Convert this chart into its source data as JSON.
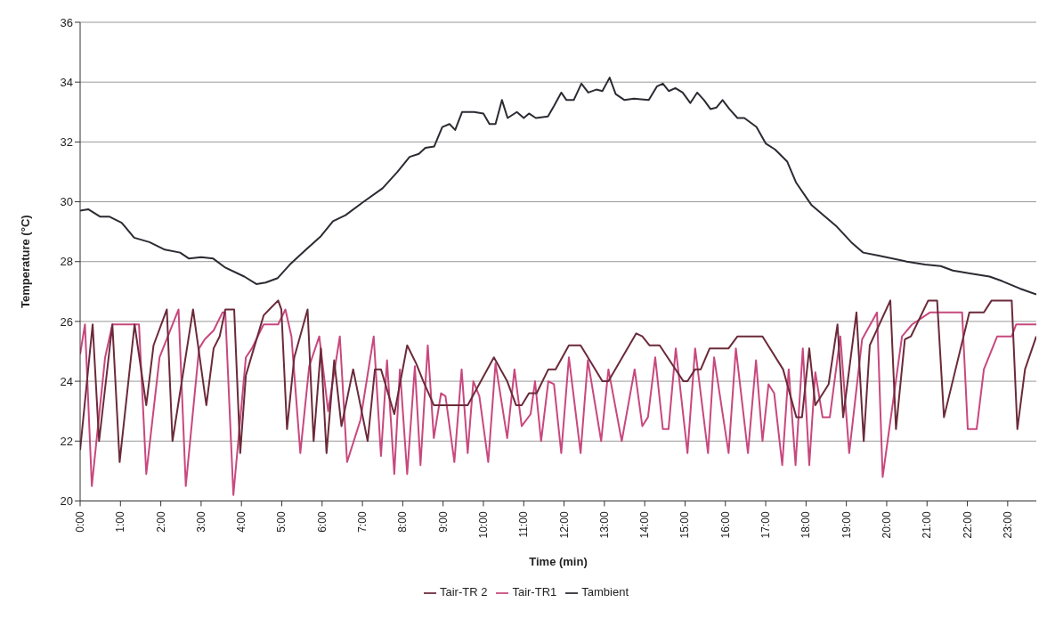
{
  "chart_data": {
    "type": "line",
    "xlabel": "Time (min)",
    "ylabel": "Temperature (°C)",
    "xlim": [
      0,
      23.71
    ],
    "ylim": [
      20,
      36
    ],
    "yticks": [
      20,
      22,
      24,
      26,
      28,
      30,
      32,
      34,
      36
    ],
    "xticks": [
      {
        "value": 0,
        "label": "0:00"
      },
      {
        "value": 1,
        "label": "1:00"
      },
      {
        "value": 2,
        "label": "2:00"
      },
      {
        "value": 3,
        "label": "3:00"
      },
      {
        "value": 4,
        "label": "4:00"
      },
      {
        "value": 5,
        "label": "5:00"
      },
      {
        "value": 6,
        "label": "6:00"
      },
      {
        "value": 7,
        "label": "7:00"
      },
      {
        "value": 8,
        "label": "8:00"
      },
      {
        "value": 9,
        "label": "9:00"
      },
      {
        "value": 10,
        "label": "10:00"
      },
      {
        "value": 11,
        "label": "11:00"
      },
      {
        "value": 12,
        "label": "12:00"
      },
      {
        "value": 13,
        "label": "13:00"
      },
      {
        "value": 14,
        "label": "14:00"
      },
      {
        "value": 15,
        "label": "15:00"
      },
      {
        "value": 16,
        "label": "16:00"
      },
      {
        "value": 17,
        "label": "17:00"
      },
      {
        "value": 18,
        "label": "18:00"
      },
      {
        "value": 19,
        "label": "19:00"
      },
      {
        "value": 20,
        "label": "20:00"
      },
      {
        "value": 21,
        "label": "21:00"
      },
      {
        "value": 22,
        "label": "22:00"
      },
      {
        "value": 23,
        "label": "23:00"
      }
    ],
    "grid": "y",
    "legend": "bottom",
    "series": [
      {
        "name": "Tair-TR1",
        "color": "#c8487e",
        "x": [
          0,
          0.12,
          0.29,
          0.62,
          0.8,
          1.35,
          1.46,
          1.64,
          1.97,
          2.44,
          2.62,
          2.95,
          3.09,
          3.31,
          3.53,
          3.6,
          3.8,
          4.11,
          4.26,
          4.55,
          4.91,
          5.09,
          5.24,
          5.46,
          5.68,
          5.93,
          6.15,
          6.44,
          6.62,
          6.95,
          7.28,
          7.46,
          7.61,
          7.79,
          7.93,
          8.11,
          8.3,
          8.44,
          8.62,
          8.77,
          8.95,
          9.06,
          9.28,
          9.46,
          9.61,
          9.75,
          9.9,
          10.12,
          10.3,
          10.59,
          10.77,
          10.95,
          11.17,
          11.28,
          11.43,
          11.61,
          11.75,
          11.93,
          12.12,
          12.41,
          12.59,
          12.92,
          13.1,
          13.43,
          13.75,
          13.94,
          14.08,
          14.26,
          14.45,
          14.59,
          14.77,
          15.06,
          15.25,
          15.57,
          15.72,
          16.08,
          16.26,
          16.56,
          16.76,
          16.92,
          17.07,
          17.21,
          17.41,
          17.57,
          17.74,
          17.92,
          18.08,
          18.23,
          18.41,
          18.59,
          18.85,
          19.07,
          19.39,
          19.76,
          19.9,
          20.38,
          20.63,
          21.07,
          21.87,
          22.01,
          22.23,
          22.41,
          22.74,
          23.1,
          23.21,
          23.71
        ],
        "values": [
          24.9,
          25.9,
          20.5,
          24.8,
          25.9,
          25.9,
          25.9,
          20.9,
          24.8,
          26.4,
          20.5,
          25.1,
          25.4,
          25.7,
          26.3,
          26.3,
          20.2,
          24.8,
          25.1,
          25.9,
          25.9,
          26.4,
          25.5,
          21.6,
          24.5,
          25.5,
          23,
          25.5,
          21.3,
          22.7,
          25.5,
          21.5,
          24.7,
          20.9,
          24.4,
          20.9,
          24.5,
          21.2,
          25.2,
          22.1,
          23.6,
          23.5,
          21.3,
          24.4,
          21.6,
          24,
          23.5,
          21.3,
          24.6,
          22.1,
          24.4,
          22.5,
          22.9,
          24,
          22,
          24,
          23.9,
          21.6,
          24.8,
          21.6,
          24.7,
          22,
          24.4,
          22,
          24.4,
          22.5,
          22.8,
          24.8,
          22.4,
          22.4,
          25.1,
          21.6,
          25.1,
          21.6,
          24.8,
          21.6,
          25.1,
          21.6,
          24.7,
          22,
          23.9,
          23.6,
          21.2,
          24.4,
          21.2,
          25.1,
          21.2,
          24.3,
          22.8,
          22.8,
          25.5,
          21.6,
          25.4,
          26.3,
          20.8,
          25.5,
          25.9,
          26.3,
          26.3,
          22.4,
          22.4,
          24.4,
          25.5,
          25.5,
          25.9,
          25.9
        ]
      },
      {
        "name": "Tair-TR 2",
        "color": "#6b2a3a",
        "x": [
          0,
          0.31,
          0.47,
          0.8,
          0.98,
          1.35,
          1.64,
          1.82,
          2.15,
          2.29,
          2.8,
          3.13,
          3.31,
          3.46,
          3.6,
          3.82,
          3.97,
          4.11,
          4.55,
          4.69,
          4.91,
          4.99,
          5.13,
          5.31,
          5.64,
          5.79,
          5.97,
          6.11,
          6.3,
          6.48,
          6.77,
          7.13,
          7.31,
          7.46,
          7.79,
          8.11,
          8.33,
          8.51,
          8.77,
          9.61,
          10.26,
          10.59,
          10.81,
          10.95,
          11.13,
          11.32,
          11.61,
          11.79,
          12.12,
          12.41,
          12.95,
          13.1,
          13.79,
          13.94,
          14.12,
          14.37,
          14.96,
          15.06,
          15.25,
          15.39,
          15.61,
          15.83,
          16.08,
          16.3,
          16.92,
          17.43,
          17.76,
          17.9,
          18.08,
          18.23,
          18.56,
          18.78,
          18.92,
          19.25,
          19.43,
          19.58,
          20.09,
          20.23,
          20.45,
          20.6,
          21.03,
          21.25,
          21.42,
          22.05,
          22.41,
          22.6,
          23.1,
          23.24,
          23.43,
          23.71
        ],
        "values": [
          21.7,
          25.9,
          22,
          25.9,
          21.3,
          25.9,
          23.2,
          25.2,
          26.4,
          22,
          26.4,
          23.2,
          25.1,
          25.5,
          26.4,
          26.4,
          21.6,
          24.2,
          26.2,
          26.4,
          26.7,
          26.4,
          22.4,
          24.8,
          26.4,
          22,
          25.1,
          21.6,
          24.7,
          22.5,
          24.4,
          22,
          24.4,
          24.4,
          22.9,
          25.2,
          24.6,
          24,
          23.2,
          23.2,
          24.8,
          24,
          23.2,
          23.2,
          23.6,
          23.6,
          24.4,
          24.4,
          25.2,
          25.2,
          24,
          24,
          25.6,
          25.5,
          25.2,
          25.2,
          24,
          24,
          24.4,
          24.4,
          25.1,
          25.1,
          25.1,
          25.5,
          25.5,
          24.4,
          22.8,
          22.8,
          25.1,
          23.2,
          23.9,
          25.9,
          22.8,
          26.3,
          22,
          25.2,
          26.7,
          22.4,
          25.4,
          25.5,
          26.7,
          26.7,
          22.8,
          26.3,
          26.3,
          26.7,
          26.7,
          22.4,
          24.4,
          25.5
        ]
      },
      {
        "name": "Tambient",
        "color": "#2b2b33",
        "x": [
          0,
          0.2,
          0.5,
          0.73,
          1.03,
          1.34,
          1.72,
          2.1,
          2.48,
          2.7,
          3,
          3.3,
          3.6,
          4.07,
          4.37,
          4.6,
          4.9,
          5.2,
          5.6,
          5.97,
          6.27,
          6.58,
          7.03,
          7.5,
          7.87,
          8.17,
          8.4,
          8.56,
          8.78,
          8.98,
          9.16,
          9.3,
          9.47,
          9.77,
          10,
          10.15,
          10.3,
          10.46,
          10.6,
          10.83,
          11,
          11.13,
          11.3,
          11.6,
          11.75,
          11.93,
          12.06,
          12.24,
          12.43,
          12.6,
          12.8,
          12.95,
          13.13,
          13.28,
          13.5,
          13.73,
          14.1,
          14.3,
          14.45,
          14.6,
          14.76,
          14.94,
          15.13,
          15.3,
          15.47,
          15.63,
          15.78,
          15.93,
          16.1,
          16.3,
          16.47,
          16.77,
          17,
          17.23,
          17.53,
          17.75,
          18.13,
          18.74,
          19.12,
          19.42,
          19.8,
          20.5,
          20.95,
          21.34,
          21.64,
          22.1,
          22.55,
          22.86,
          23.3,
          23.71
        ],
        "values": [
          29.7,
          29.75,
          29.5,
          29.5,
          29.3,
          28.8,
          28.65,
          28.4,
          28.3,
          28.1,
          28.15,
          28.1,
          27.8,
          27.5,
          27.25,
          27.3,
          27.45,
          27.9,
          28.4,
          28.85,
          29.35,
          29.55,
          30,
          30.45,
          31,
          31.5,
          31.6,
          31.8,
          31.85,
          32.5,
          32.6,
          32.4,
          33,
          33,
          32.95,
          32.6,
          32.6,
          33.4,
          32.8,
          33,
          32.8,
          32.95,
          32.8,
          32.85,
          33.2,
          33.65,
          33.4,
          33.4,
          33.95,
          33.65,
          33.75,
          33.7,
          34.15,
          33.6,
          33.4,
          33.45,
          33.4,
          33.85,
          33.95,
          33.7,
          33.8,
          33.65,
          33.3,
          33.65,
          33.4,
          33.1,
          33.15,
          33.4,
          33.1,
          32.8,
          32.8,
          32.5,
          31.95,
          31.75,
          31.35,
          30.65,
          29.9,
          29.2,
          28.65,
          28.3,
          28.2,
          28,
          27.9,
          27.85,
          27.7,
          27.6,
          27.5,
          27.35,
          27.1,
          26.9
        ]
      }
    ]
  }
}
